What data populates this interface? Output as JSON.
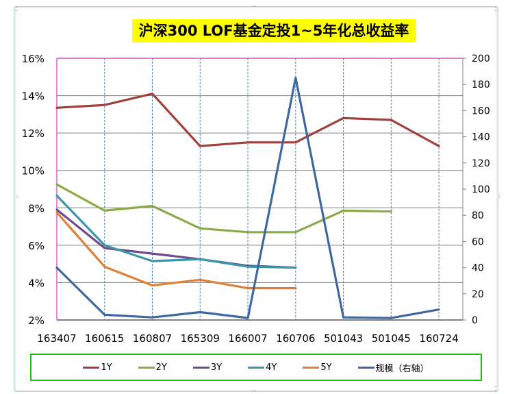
{
  "title": "沪深300 LOF基金定投1~5年化总收益率",
  "chart_data": {
    "type": "line",
    "title": "沪深300 LOF基金定投1~5年化总收益率",
    "xlabel": "",
    "ylabel": "",
    "categories": [
      "163407",
      "160615",
      "160807",
      "165309",
      "166007",
      "160706",
      "501043",
      "501045",
      "160724"
    ],
    "y_left": {
      "ticks": [
        "2%",
        "4%",
        "6%",
        "8%",
        "10%",
        "12%",
        "14%",
        "16%"
      ],
      "min": 2,
      "max": 16
    },
    "y_right": {
      "ticks": [
        "0",
        "20",
        "40",
        "60",
        "80",
        "100",
        "120",
        "140",
        "160",
        "180",
        "200"
      ],
      "min": 0,
      "max": 200
    },
    "grid": true,
    "legend_position": "bottom",
    "series": [
      {
        "name": "1Y",
        "axis": "left",
        "color": "#a0403c",
        "values": [
          13.35,
          13.5,
          14.1,
          11.3,
          11.5,
          11.5,
          12.8,
          12.7,
          11.3
        ]
      },
      {
        "name": "2Y",
        "axis": "left",
        "color": "#8aaa48",
        "values": [
          9.25,
          7.85,
          8.1,
          6.9,
          6.7,
          6.7,
          7.85,
          7.8,
          null
        ]
      },
      {
        "name": "3Y",
        "axis": "left",
        "color": "#6e4a8e",
        "values": [
          7.9,
          5.85,
          5.55,
          5.25,
          4.9,
          4.8,
          null,
          null,
          null
        ]
      },
      {
        "name": "4Y",
        "axis": "left",
        "color": "#3a96aa",
        "values": [
          8.65,
          6.0,
          5.15,
          5.25,
          4.85,
          4.8,
          null,
          null,
          null
        ]
      },
      {
        "name": "5Y",
        "axis": "left",
        "color": "#e07e36",
        "values": [
          7.75,
          4.85,
          3.85,
          4.15,
          3.7,
          3.7,
          null,
          null,
          null
        ]
      },
      {
        "name": "规模（右轴）",
        "axis": "right",
        "color": "#3f68a2",
        "values": [
          40,
          4,
          2,
          6,
          1.5,
          185,
          2,
          1.5,
          8
        ]
      }
    ]
  },
  "legend": [
    {
      "label": "1Y",
      "color": "#a0403c"
    },
    {
      "label": "2Y",
      "color": "#8aaa48"
    },
    {
      "label": "3Y",
      "color": "#6e4a8e"
    },
    {
      "label": "4Y",
      "color": "#3a96aa"
    },
    {
      "label": "5Y",
      "color": "#e07e36"
    },
    {
      "label": "规模（右轴）",
      "color": "#3f68a2"
    }
  ]
}
